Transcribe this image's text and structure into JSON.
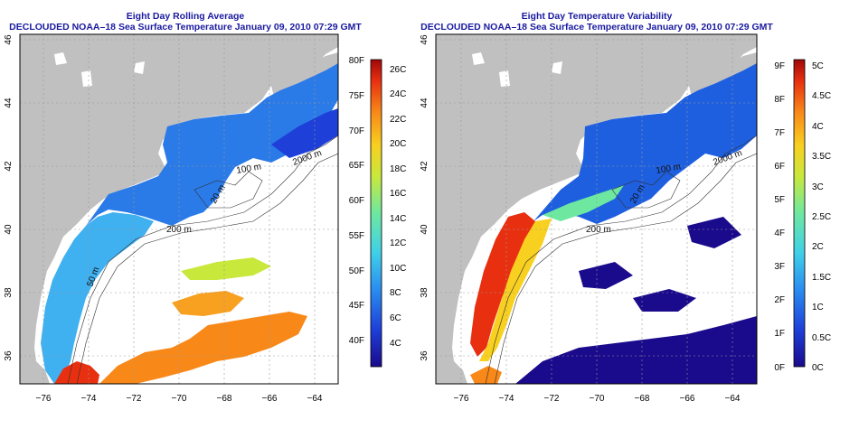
{
  "panels": [
    {
      "title": "Eight Day Rolling Average",
      "subtitle": "DECLOUDED NOAA–18 Sea Surface Temperature January 09, 2010 07:29 GMT",
      "colorbar_left_labels": [
        "80F",
        "75F",
        "70F",
        "65F",
        "60F",
        "55F",
        "50F",
        "45F",
        "40F"
      ],
      "colorbar_right_labels": [
        "26C",
        "24C",
        "22C",
        "20C",
        "18C",
        "16C",
        "14C",
        "12C",
        "10C",
        "8C",
        "6C",
        "4C"
      ]
    },
    {
      "title": "Eight Day Temperature Variability",
      "subtitle": "DECLOUDED NOAA–18 Sea Surface Temperature January 09, 2010 07:29 GMT",
      "colorbar_left_labels": [
        "9F",
        "8F",
        "7F",
        "6F",
        "5F",
        "4F",
        "3F",
        "2F",
        "1F",
        "0F"
      ],
      "colorbar_right_labels": [
        "5C",
        "4.5C",
        "4C",
        "3.5C",
        "3C",
        "2.5C",
        "2C",
        "1.5C",
        "1C",
        "0.5C",
        "0C"
      ]
    }
  ],
  "axes": {
    "lon_ticks": [
      "−76",
      "−74",
      "−72",
      "−70",
      "−68",
      "−66",
      "−64"
    ],
    "lat_ticks": [
      "36",
      "38",
      "40",
      "42",
      "44",
      "46"
    ]
  },
  "contour_labels": [
    "2000 m",
    "200 m",
    "100 m",
    "20 m",
    "50 m"
  ],
  "colors": {
    "title": "#1a1aa0",
    "land": "#c0c0c0",
    "ocean_nodata": "#ffffff",
    "colormap": [
      "#1a0a8c",
      "#1e3fd8",
      "#2a8cf0",
      "#3fd0e8",
      "#6ee8a0",
      "#c8e83c",
      "#f8d020",
      "#f88818",
      "#e83010",
      "#a00808"
    ]
  }
}
